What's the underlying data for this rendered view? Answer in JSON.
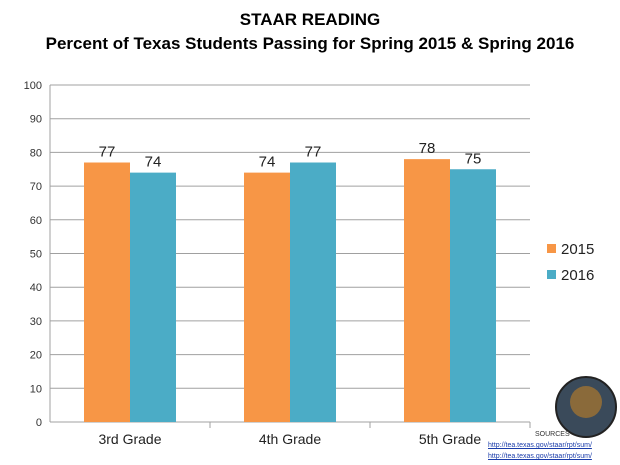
{
  "chart_data": {
    "type": "bar",
    "title": "STAAR READING",
    "subtitle": "Percent of Texas Students Passing for Spring 2015 & Spring 2016",
    "categories": [
      "3rd Grade",
      "4th Grade",
      "5th Grade"
    ],
    "series": [
      {
        "name": "2015",
        "values": [
          77,
          74,
          78
        ],
        "color": "#F79646"
      },
      {
        "name": "2016",
        "values": [
          74,
          77,
          75
        ],
        "color": "#4BACC6"
      }
    ],
    "ylim": [
      0,
      100
    ],
    "yticks": [
      0,
      10,
      20,
      30,
      40,
      50,
      60,
      70,
      80,
      90,
      100
    ],
    "grid": true,
    "legend": "right",
    "xlabel": "",
    "ylabel": ""
  },
  "sources": {
    "heading": "SOURCES",
    "links": [
      "http://tea.texas.gov/staar/rpt/sum/",
      "http://tea.texas.gov/staar/rpt/sum/"
    ]
  }
}
